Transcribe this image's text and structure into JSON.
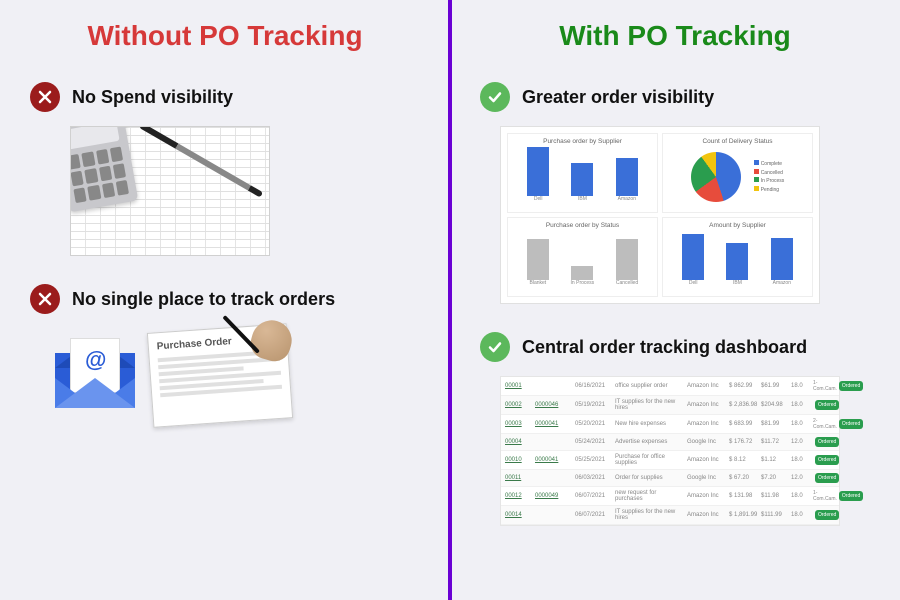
{
  "left": {
    "title": "Without PO Tracking",
    "title_color": "#d63939",
    "icon_bg": "#9b1c1c",
    "items": [
      {
        "label": "No Spend visibility"
      },
      {
        "label": "No single place to track orders"
      }
    ]
  },
  "right": {
    "title": "With PO Tracking",
    "title_color": "#1a8a1a",
    "icon_bg": "#5cb85c",
    "items": [
      {
        "label": "Greater order visibility"
      },
      {
        "label": "Central order tracking dashboard"
      }
    ]
  },
  "divider_color": "#6a00d4",
  "background_color": "#f0f0f5",
  "dashboard": {
    "chart_a": {
      "title": "Purchase order by Supplier",
      "type": "bar",
      "ylim": [
        0,
        10
      ],
      "categories": [
        "Dell",
        "IBM",
        "Amazon"
      ],
      "values": [
        9,
        6,
        7
      ],
      "bar_color": "#3a6fd8"
    },
    "chart_b": {
      "title": "Count of Delivery Status",
      "type": "pie",
      "slices": [
        {
          "label": "Complete",
          "value": 45,
          "color": "#3a6fd8"
        },
        {
          "label": "Cancelled",
          "value": 20,
          "color": "#e74c3c"
        },
        {
          "label": "In Process",
          "value": 25,
          "color": "#2a9d4e"
        },
        {
          "label": "Pending",
          "value": 10,
          "color": "#f1c40f"
        }
      ]
    },
    "chart_c": {
      "title": "Purchase order by Status",
      "type": "bar",
      "ylim": [
        0,
        4
      ],
      "categories": [
        "Blanket",
        "In Process",
        "Cancelled"
      ],
      "values": [
        3,
        1,
        3
      ],
      "bar_color": "#bdbdbd"
    },
    "chart_d": {
      "title": "Amount by Supplier",
      "type": "bar",
      "ylim": [
        0,
        5000
      ],
      "ytick": "$1,000",
      "categories": [
        "Dell",
        "IBM",
        "Amazon"
      ],
      "values": [
        4200,
        3400,
        3800
      ],
      "bar_color": "#3a6fd8"
    }
  },
  "tracking_table": {
    "button_label": "Ordered",
    "button_color": "#2a9d4e",
    "rows": [
      {
        "id": "00001",
        "ref": "",
        "date": "06/16/2021",
        "desc": "office supplier order",
        "vendor": "Amazon Inc",
        "amt": "$ 862.99",
        "tax": "$61.99",
        "pct": "18.0",
        "status": "1-Com.Cam."
      },
      {
        "id": "00002",
        "ref": "0000046",
        "date": "05/19/2021",
        "desc": "IT supplies for the new hires",
        "vendor": "Amazon Inc",
        "amt": "$ 2,836.98",
        "tax": "$204.98",
        "pct": "18.0",
        "status": ""
      },
      {
        "id": "00003",
        "ref": "0000041",
        "date": "05/20/2021",
        "desc": "New hire expenses",
        "vendor": "Amazon Inc",
        "amt": "$ 683.99",
        "tax": "$81.99",
        "pct": "18.0",
        "status": "2-Com.Cam."
      },
      {
        "id": "00004",
        "ref": "",
        "date": "05/24/2021",
        "desc": "Advertise expenses",
        "vendor": "Google Inc",
        "amt": "$ 176.72",
        "tax": "$11.72",
        "pct": "12.0",
        "status": ""
      },
      {
        "id": "00010",
        "ref": "0000041",
        "date": "05/25/2021",
        "desc": "Purchase for office supplies",
        "vendor": "Amazon Inc",
        "amt": "$ 8.12",
        "tax": "$1.12",
        "pct": "18.0",
        "status": ""
      },
      {
        "id": "00011",
        "ref": "",
        "date": "06/03/2021",
        "desc": "Order for supplies",
        "vendor": "Google Inc",
        "amt": "$ 67.20",
        "tax": "$7.20",
        "pct": "12.0",
        "status": ""
      },
      {
        "id": "00012",
        "ref": "0000049",
        "date": "06/07/2021",
        "desc": "new request for purchases",
        "vendor": "Amazon Inc",
        "amt": "$ 131.98",
        "tax": "$11.98",
        "pct": "18.0",
        "status": "1-Com.Cam."
      },
      {
        "id": "00014",
        "ref": "",
        "date": "06/07/2021",
        "desc": "IT supplies for the new hires",
        "vendor": "Amazon Inc",
        "amt": "$ 1,891.99",
        "tax": "$111.99",
        "pct": "18.0",
        "status": ""
      }
    ]
  },
  "po_illus": {
    "title": "Purchase Order"
  }
}
